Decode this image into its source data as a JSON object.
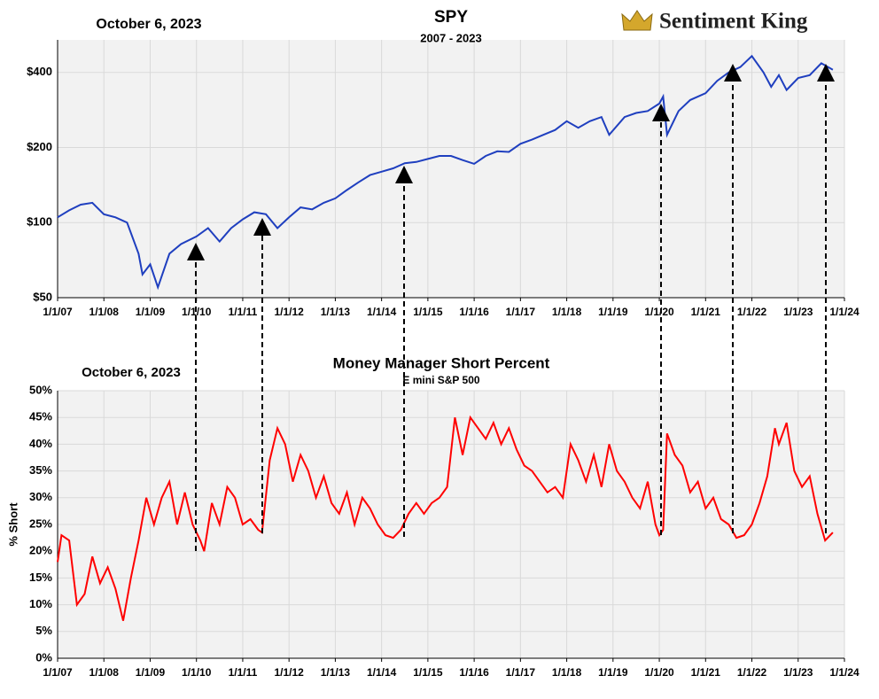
{
  "chart_data": [
    {
      "type": "line",
      "title": "SPY",
      "subtitle": "2007 - 2023",
      "date": "October 6, 2023",
      "brand": "Sentiment King",
      "log_scale": true,
      "grid": true,
      "ylim": [
        50,
        540
      ],
      "yticks": [
        {
          "value": 50,
          "label": "$50"
        },
        {
          "value": 100,
          "label": "$100"
        },
        {
          "value": 200,
          "label": "$200"
        },
        {
          "value": 400,
          "label": "$400"
        }
      ],
      "xlim": [
        "2007-01",
        "2024-01"
      ],
      "xticks": [
        {
          "value": "2007-01",
          "label": "1/1/07"
        },
        {
          "value": "2008-01",
          "label": "1/1/08"
        },
        {
          "value": "2009-01",
          "label": "1/1/09"
        },
        {
          "value": "2010-01",
          "label": "1/1/10"
        },
        {
          "value": "2011-01",
          "label": "1/1/11"
        },
        {
          "value": "2012-01",
          "label": "1/1/12"
        },
        {
          "value": "2013-01",
          "label": "1/1/13"
        },
        {
          "value": "2014-01",
          "label": "1/1/14"
        },
        {
          "value": "2015-01",
          "label": "1/1/15"
        },
        {
          "value": "2016-01",
          "label": "1/1/16"
        },
        {
          "value": "2017-01",
          "label": "1/1/17"
        },
        {
          "value": "2018-01",
          "label": "1/1/18"
        },
        {
          "value": "2019-01",
          "label": "1/1/19"
        },
        {
          "value": "2020-01",
          "label": "1/1/20"
        },
        {
          "value": "2021-01",
          "label": "1/1/21"
        },
        {
          "value": "2022-01",
          "label": "1/1/22"
        },
        {
          "value": "2023-01",
          "label": "1/1/23"
        },
        {
          "value": "2024-01",
          "label": "1/1/24"
        }
      ],
      "x": [
        "2007-01",
        "2007-04",
        "2007-07",
        "2007-10",
        "2008-01",
        "2008-04",
        "2008-07",
        "2008-10",
        "2008-11",
        "2009-01",
        "2009-03",
        "2009-06",
        "2009-09",
        "2010-01",
        "2010-04",
        "2010-07",
        "2010-10",
        "2011-01",
        "2011-04",
        "2011-07",
        "2011-10",
        "2012-01",
        "2012-04",
        "2012-07",
        "2012-10",
        "2013-01",
        "2013-04",
        "2013-07",
        "2013-10",
        "2014-01",
        "2014-04",
        "2014-07",
        "2014-10",
        "2015-01",
        "2015-04",
        "2015-07",
        "2015-10",
        "2016-01",
        "2016-04",
        "2016-07",
        "2016-10",
        "2017-01",
        "2017-04",
        "2017-07",
        "2017-10",
        "2018-01",
        "2018-04",
        "2018-07",
        "2018-10",
        "2018-12",
        "2019-04",
        "2019-07",
        "2019-10",
        "2020-01",
        "2020-02",
        "2020-03",
        "2020-06",
        "2020-09",
        "2021-01",
        "2021-04",
        "2021-07",
        "2021-10",
        "2022-01",
        "2022-04",
        "2022-06",
        "2022-08",
        "2022-10",
        "2023-01",
        "2023-04",
        "2023-07",
        "2023-10"
      ],
      "series": [
        {
          "name": "SPY",
          "color": "#1f3fbf",
          "values": [
            105,
            112,
            118,
            120,
            108,
            105,
            100,
            75,
            62,
            68,
            55,
            75,
            82,
            88,
            95,
            84,
            95,
            103,
            110,
            108,
            95,
            105,
            115,
            113,
            120,
            125,
            135,
            145,
            155,
            160,
            165,
            173,
            175,
            180,
            185,
            185,
            178,
            172,
            185,
            193,
            192,
            207,
            215,
            225,
            235,
            255,
            240,
            255,
            265,
            225,
            265,
            275,
            280,
            300,
            320,
            225,
            280,
            310,
            330,
            370,
            400,
            420,
            465,
            400,
            350,
            390,
            340,
            380,
            390,
            435,
            410
          ]
        }
      ]
    },
    {
      "type": "line",
      "title": "Money Manager Short Percent",
      "subtitle": "E mini  S&P 500",
      "date": "October 6, 2023",
      "ylabel": "% Short",
      "log_scale": false,
      "grid": true,
      "ylim": [
        0,
        50
      ],
      "yticks": [
        {
          "value": 0,
          "label": "0%"
        },
        {
          "value": 5,
          "label": "5%"
        },
        {
          "value": 10,
          "label": "10%"
        },
        {
          "value": 15,
          "label": "15%"
        },
        {
          "value": 20,
          "label": "20%"
        },
        {
          "value": 25,
          "label": "25%"
        },
        {
          "value": 30,
          "label": "30%"
        },
        {
          "value": 35,
          "label": "35%"
        },
        {
          "value": 40,
          "label": "40%"
        },
        {
          "value": 45,
          "label": "45%"
        },
        {
          "value": 50,
          "label": "50%"
        }
      ],
      "xlim": [
        "2007-01",
        "2024-01"
      ],
      "xticks": [
        {
          "value": "2007-01",
          "label": "1/1/07"
        },
        {
          "value": "2008-01",
          "label": "1/1/08"
        },
        {
          "value": "2009-01",
          "label": "1/1/09"
        },
        {
          "value": "2010-01",
          "label": "1/1/10"
        },
        {
          "value": "2011-01",
          "label": "1/1/11"
        },
        {
          "value": "2012-01",
          "label": "1/1/12"
        },
        {
          "value": "2013-01",
          "label": "1/1/13"
        },
        {
          "value": "2014-01",
          "label": "1/1/14"
        },
        {
          "value": "2015-01",
          "label": "1/1/15"
        },
        {
          "value": "2016-01",
          "label": "1/1/16"
        },
        {
          "value": "2017-01",
          "label": "1/1/17"
        },
        {
          "value": "2018-01",
          "label": "1/1/18"
        },
        {
          "value": "2019-01",
          "label": "1/1/19"
        },
        {
          "value": "2020-01",
          "label": "1/1/20"
        },
        {
          "value": "2021-01",
          "label": "1/1/21"
        },
        {
          "value": "2022-01",
          "label": "1/1/22"
        },
        {
          "value": "2023-01",
          "label": "1/1/23"
        },
        {
          "value": "2024-01",
          "label": "1/1/24"
        }
      ],
      "x": [
        "2007-01",
        "2007-02",
        "2007-04",
        "2007-06",
        "2007-08",
        "2007-10",
        "2007-12",
        "2008-02",
        "2008-04",
        "2008-06",
        "2008-08",
        "2008-10",
        "2008-12",
        "2009-02",
        "2009-04",
        "2009-06",
        "2009-08",
        "2009-10",
        "2009-12",
        "2010-02",
        "2010-03",
        "2010-05",
        "2010-07",
        "2010-09",
        "2010-11",
        "2011-01",
        "2011-03",
        "2011-05",
        "2011-06",
        "2011-08",
        "2011-10",
        "2011-12",
        "2012-02",
        "2012-04",
        "2012-06",
        "2012-08",
        "2012-10",
        "2012-12",
        "2013-02",
        "2013-04",
        "2013-06",
        "2013-08",
        "2013-10",
        "2013-12",
        "2014-02",
        "2014-04",
        "2014-06",
        "2014-08",
        "2014-10",
        "2014-12",
        "2015-02",
        "2015-04",
        "2015-06",
        "2015-08",
        "2015-10",
        "2015-12",
        "2016-02",
        "2016-04",
        "2016-06",
        "2016-08",
        "2016-10",
        "2016-12",
        "2017-02",
        "2017-04",
        "2017-06",
        "2017-08",
        "2017-10",
        "2017-12",
        "2018-02",
        "2018-04",
        "2018-06",
        "2018-08",
        "2018-10",
        "2018-12",
        "2019-02",
        "2019-04",
        "2019-06",
        "2019-08",
        "2019-10",
        "2019-12",
        "2020-01",
        "2020-02",
        "2020-03",
        "2020-05",
        "2020-07",
        "2020-09",
        "2020-11",
        "2021-01",
        "2021-03",
        "2021-05",
        "2021-07",
        "2021-09",
        "2021-11",
        "2022-01",
        "2022-03",
        "2022-05",
        "2022-07",
        "2022-08",
        "2022-10",
        "2022-12",
        "2023-02",
        "2023-04",
        "2023-06",
        "2023-08",
        "2023-10"
      ],
      "series": [
        {
          "name": "Short Percent",
          "color": "#ff0000",
          "values": [
            18,
            23,
            22,
            10,
            12,
            19,
            14,
            17,
            13,
            7,
            15,
            22,
            30,
            25,
            30,
            33,
            25,
            31,
            25,
            22,
            20,
            29,
            25,
            32,
            30,
            25,
            26,
            24,
            23.5,
            37,
            43,
            40,
            33,
            38,
            35,
            30,
            34,
            29,
            27,
            31,
            25,
            30,
            28,
            25,
            23,
            22.5,
            24,
            27,
            29,
            27,
            29,
            30,
            32,
            45,
            38,
            45,
            43,
            41,
            44,
            40,
            43,
            39,
            36,
            35,
            33,
            31,
            32,
            30,
            40,
            37,
            33,
            38,
            32,
            40,
            35,
            33,
            30,
            28,
            33,
            25,
            23,
            24,
            42,
            38,
            36,
            31,
            33,
            28,
            30,
            26,
            25,
            22.5,
            23,
            25,
            29,
            34,
            43,
            40,
            44,
            35,
            32,
            34,
            27,
            22,
            23.5
          ]
        }
      ]
    }
  ]
}
